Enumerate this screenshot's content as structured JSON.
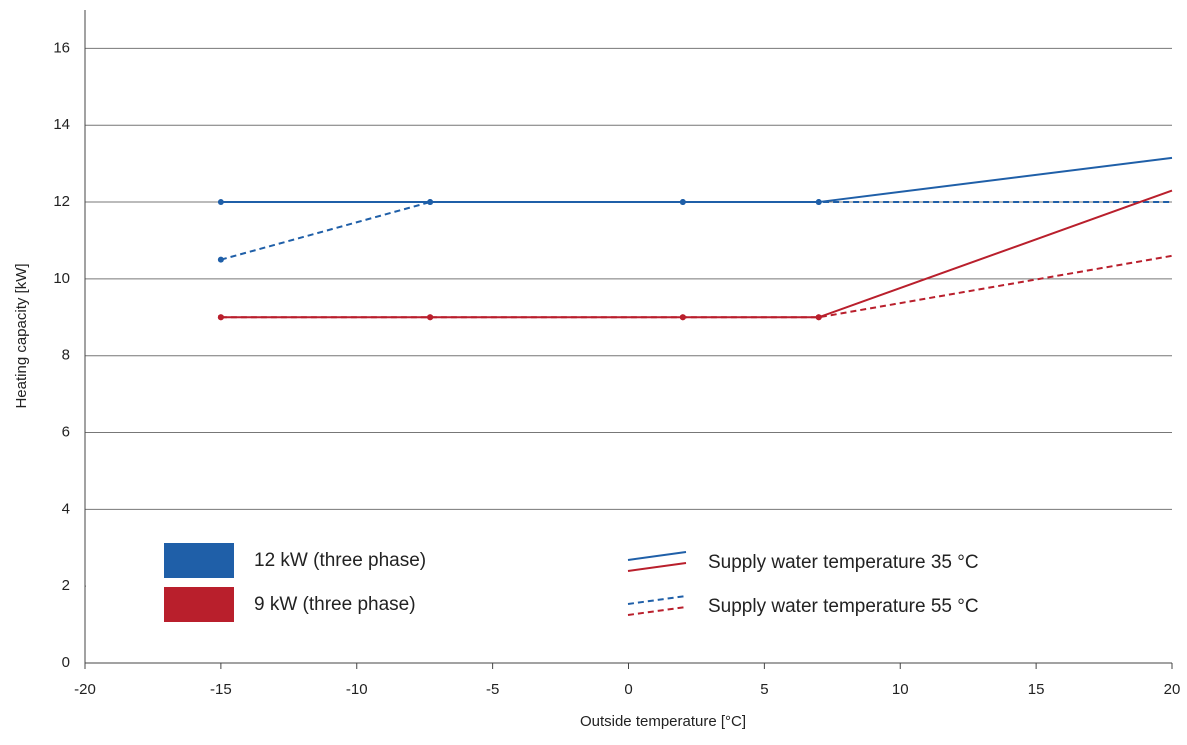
{
  "chart_data": {
    "type": "line",
    "x_label": "Outside temperature [°C]",
    "y_label": "Heating capacity [kW]",
    "x": [
      -15,
      -7.3,
      2,
      7,
      20
    ],
    "xlim": [
      -20,
      20
    ],
    "xticks": [
      -20,
      -15,
      -10,
      -5,
      0,
      5,
      10,
      15,
      20
    ],
    "ylim": [
      0,
      17
    ],
    "yticks": [
      0,
      2,
      4,
      6,
      8,
      10,
      12,
      14,
      16
    ],
    "grid": true,
    "legend": {
      "units": [
        {
          "label": "12 kW (three phase)",
          "color": "#1f5fa8"
        },
        {
          "label": "9 kW (three phase)",
          "color": "#b91f2c"
        }
      ],
      "styles": [
        {
          "label": "Supply water temperature 35 °C",
          "dashed": false
        },
        {
          "label": "Supply water temperature 55 °C",
          "dashed": true
        }
      ]
    },
    "series": [
      {
        "unit": 0,
        "style": 0,
        "values": [
          12,
          12,
          12,
          12,
          13.15
        ]
      },
      {
        "unit": 0,
        "style": 1,
        "values": [
          10.5,
          12,
          12,
          12,
          12
        ]
      },
      {
        "unit": 1,
        "style": 0,
        "values": [
          9,
          9,
          9,
          9,
          12.3
        ]
      },
      {
        "unit": 1,
        "style": 1,
        "values": [
          9,
          9,
          9,
          9,
          10.6
        ]
      }
    ]
  }
}
